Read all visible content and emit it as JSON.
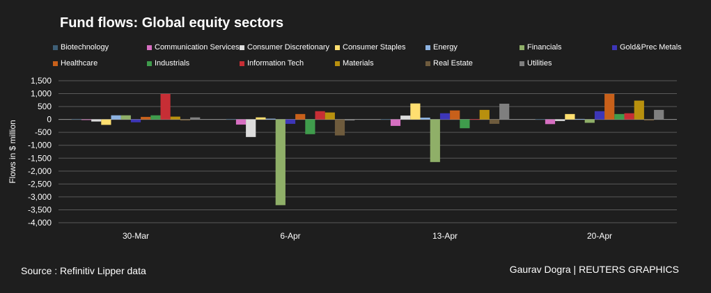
{
  "chart_data": {
    "type": "bar",
    "title": "Fund flows: Global equity sectors",
    "xlabel": "",
    "ylabel": "Flows in $ million",
    "ylim": [
      -4000,
      1500
    ],
    "yticks": [
      "-4,000",
      "-3,500",
      "-3,000",
      "-2,500",
      "-2,000",
      "-1,500",
      "-1,000",
      "-500",
      "0",
      "500",
      "1,000",
      "1,500"
    ],
    "ytick_values": [
      -4000,
      -3500,
      -3000,
      -2500,
      -2000,
      -1500,
      -1000,
      -500,
      0,
      500,
      1000,
      1500
    ],
    "grid": true,
    "legend_position": "top",
    "categories": [
      "30-Mar",
      "6-Apr",
      "13-Apr",
      "20-Apr"
    ],
    "series": [
      {
        "name": "Biotechnology",
        "color": "#3e5f77",
        "values": [
          20,
          20,
          10,
          10
        ]
      },
      {
        "name": "Communication Services",
        "color": "#d66fc1",
        "values": [
          -20,
          -200,
          -250,
          -180
        ]
      },
      {
        "name": "Consumer Discretionary",
        "color": "#dcdcdc",
        "values": [
          -80,
          -680,
          150,
          -60
        ]
      },
      {
        "name": "Consumer Staples",
        "color": "#ffdf70",
        "values": [
          -210,
          80,
          620,
          210
        ]
      },
      {
        "name": "Energy",
        "color": "#8db3e2",
        "values": [
          160,
          30,
          70,
          20
        ]
      },
      {
        "name": "Financials",
        "color": "#8faf68",
        "values": [
          160,
          -3320,
          -1650,
          -130
        ]
      },
      {
        "name": "Gold&Prec Metals",
        "color": "#3d36b8",
        "values": [
          -110,
          -170,
          240,
          320
        ]
      },
      {
        "name": "Healthcare",
        "color": "#c8601a",
        "values": [
          100,
          210,
          350,
          990
        ]
      },
      {
        "name": "Industrials",
        "color": "#3f9c4c",
        "values": [
          160,
          -570,
          -340,
          210
        ]
      },
      {
        "name": "Information Tech",
        "color": "#c72e35",
        "values": [
          990,
          320,
          10,
          240
        ]
      },
      {
        "name": "Materials",
        "color": "#b8900e",
        "values": [
          110,
          270,
          370,
          730
        ]
      },
      {
        "name": "Real Estate",
        "color": "#6e5b3d",
        "values": [
          -40,
          -620,
          -170,
          -40
        ]
      },
      {
        "name": "Utilities",
        "color": "#7f7f7f",
        "values": [
          80,
          -40,
          610,
          370
        ]
      }
    ]
  },
  "footer": {
    "source": "Source : Refinitiv Lipper data",
    "credit": "Gaurav Dogra | REUTERS GRAPHICS"
  }
}
